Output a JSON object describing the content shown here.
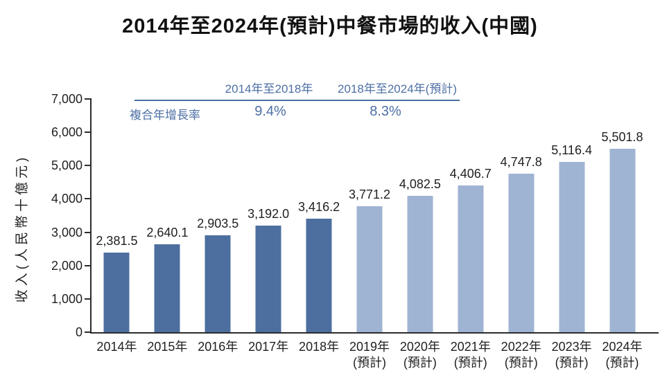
{
  "title": "2014年至2024年(預計)中餐市場的收入(中國)",
  "annotation": {
    "period1_header": "2014年至2018年",
    "period2_header": "2018年至2024年(預計)",
    "row_label": "複合年增長率",
    "period1_value": "9.4%",
    "period2_value": "8.3%"
  },
  "colors": {
    "actual_bar": "#4c6f9f",
    "forecast_bar": "#9fb3d3",
    "accent_blue": "#4d6fa5",
    "axis": "#2b2b2b",
    "text": "#1f1f1f"
  },
  "chart_data": {
    "type": "bar",
    "title": "2014年至2024年(預計)中餐市場的收入(中國)",
    "xlabel": "",
    "ylabel": "收入(人民幣十億元)",
    "ylim": [
      0,
      7000
    ],
    "grid": false,
    "legend_position": "none",
    "yticks": [
      {
        "value": 0,
        "label": "0"
      },
      {
        "value": 1000,
        "label": "1,000"
      },
      {
        "value": 2000,
        "label": "2,000"
      },
      {
        "value": 3000,
        "label": "3,000"
      },
      {
        "value": 4000,
        "label": "4,000"
      },
      {
        "value": 5000,
        "label": "5,000"
      },
      {
        "value": 6000,
        "label": "6,000"
      },
      {
        "value": 7000,
        "label": "7,000"
      }
    ],
    "bars": [
      {
        "category": "2014年",
        "sublabel": "",
        "value": 2381.5,
        "value_label": "2,381.5",
        "forecast": false
      },
      {
        "category": "2015年",
        "sublabel": "",
        "value": 2640.1,
        "value_label": "2,640.1",
        "forecast": false
      },
      {
        "category": "2016年",
        "sublabel": "",
        "value": 2903.5,
        "value_label": "2,903.5",
        "forecast": false
      },
      {
        "category": "2017年",
        "sublabel": "",
        "value": 3192.0,
        "value_label": "3,192.0",
        "forecast": false
      },
      {
        "category": "2018年",
        "sublabel": "",
        "value": 3416.2,
        "value_label": "3,416.2",
        "forecast": false
      },
      {
        "category": "2019年",
        "sublabel": "(預計)",
        "value": 3771.2,
        "value_label": "3,771.2",
        "forecast": true
      },
      {
        "category": "2020年",
        "sublabel": "(預計)",
        "value": 4082.5,
        "value_label": "4,082.5",
        "forecast": true
      },
      {
        "category": "2021年",
        "sublabel": "(預計)",
        "value": 4406.7,
        "value_label": "4,406.7",
        "forecast": true
      },
      {
        "category": "2022年",
        "sublabel": "(預計)",
        "value": 4747.8,
        "value_label": "4,747.8",
        "forecast": true
      },
      {
        "category": "2023年",
        "sublabel": "(預計)",
        "value": 5116.4,
        "value_label": "5,116.4",
        "forecast": true
      },
      {
        "category": "2024年",
        "sublabel": "(預計)",
        "value": 5501.8,
        "value_label": "5,501.8",
        "forecast": true
      }
    ],
    "annotations": {
      "cagr_2014_2018": "9.4%",
      "cagr_2018_2024_forecast": "8.3%"
    }
  }
}
